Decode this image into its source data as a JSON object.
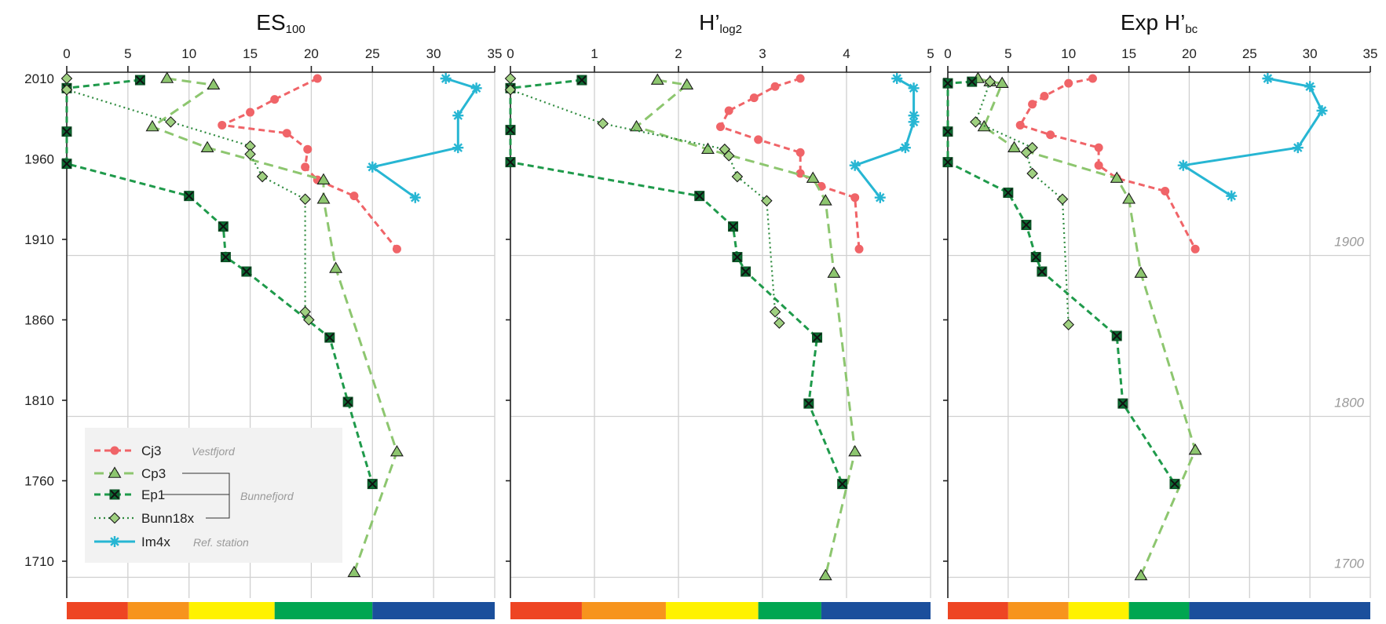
{
  "chart_data": {
    "type": "line",
    "y_axis": {
      "range": [
        1690,
        2010
      ],
      "inverted": true,
      "ticks": [
        2010,
        1960,
        1910,
        1860,
        1810,
        1760,
        1710
      ],
      "reference_lines": [
        {
          "year": 1900,
          "label": "1900"
        },
        {
          "year": 1800,
          "label": "1800"
        },
        {
          "year": 1700,
          "label": "1700"
        }
      ]
    },
    "series_styles": {
      "Cj3": {
        "color": "#f06468",
        "dash": "8,5",
        "marker": "circle"
      },
      "Cp3": {
        "color": "#8dc66f",
        "dash": "12,7",
        "marker": "triangle"
      },
      "Ep1": {
        "color": "#1f9a4b",
        "dash": "8,5",
        "marker": "xbox"
      },
      "Bunn18x": {
        "color": "#2e8b3e",
        "dash": "2,4",
        "marker": "diamond"
      },
      "Im4x": {
        "color": "#27b6d3",
        "dash": "",
        "marker": "star"
      }
    },
    "panels": [
      {
        "title_main": "ES",
        "title_sub": "100",
        "xlim": [
          0,
          35
        ],
        "xticks": [
          0,
          5,
          10,
          15,
          20,
          25,
          30,
          35
        ],
        "color_scale": [
          {
            "from": 0,
            "to": 5,
            "color": "#ee4523"
          },
          {
            "from": 5,
            "to": 10,
            "color": "#f7941d"
          },
          {
            "from": 10,
            "to": 17,
            "color": "#fff200"
          },
          {
            "from": 17,
            "to": 25,
            "color": "#00a651"
          },
          {
            "from": 25,
            "to": 35,
            "color": "#1b4f9c"
          }
        ],
        "series": [
          {
            "name": "Cj3",
            "points": [
              [
                20.5,
                2010
              ],
              [
                17,
                1997
              ],
              [
                15,
                1989
              ],
              [
                12.7,
                1981
              ],
              [
                18,
                1976
              ],
              [
                19.7,
                1966
              ],
              [
                19.5,
                1955
              ],
              [
                20.5,
                1947
              ],
              [
                23.5,
                1937
              ],
              [
                27,
                1904
              ]
            ]
          },
          {
            "name": "Cp3",
            "points": [
              [
                8.2,
                2010
              ],
              [
                12,
                2006
              ],
              [
                7,
                1980
              ],
              [
                11.5,
                1967
              ],
              [
                21,
                1947
              ],
              [
                21,
                1935
              ],
              [
                22,
                1892
              ],
              [
                27,
                1778
              ],
              [
                23.5,
                1703
              ]
            ]
          },
          {
            "name": "Ep1",
            "points": [
              [
                6,
                2009
              ],
              [
                0,
                2004
              ],
              [
                0,
                1977
              ],
              [
                0,
                1957
              ],
              [
                10,
                1937
              ],
              [
                12.8,
                1918
              ],
              [
                13,
                1899
              ],
              [
                14.7,
                1890
              ],
              [
                21.5,
                1849
              ],
              [
                23,
                1809
              ],
              [
                25,
                1758
              ]
            ]
          },
          {
            "name": "Bunn18x",
            "points": [
              [
                0,
                2010
              ],
              [
                0,
                2003
              ],
              [
                8.5,
                1983
              ],
              [
                15,
                1968
              ],
              [
                15,
                1963
              ],
              [
                16,
                1949
              ],
              [
                19.5,
                1935
              ],
              [
                19.5,
                1865
              ],
              [
                19.8,
                1860
              ]
            ]
          },
          {
            "name": "Im4x",
            "points": [
              [
                31,
                2010
              ],
              [
                33.5,
                2004
              ],
              [
                32,
                1987
              ],
              [
                32,
                1967
              ],
              [
                25,
                1955
              ],
              [
                28.5,
                1936
              ]
            ]
          }
        ]
      },
      {
        "title_main": "H’",
        "title_sub": "log2",
        "xlim": [
          0,
          5
        ],
        "xticks": [
          0,
          1,
          2,
          3,
          4,
          5
        ],
        "color_scale": [
          {
            "from": 0,
            "to": 0.85,
            "color": "#ee4523"
          },
          {
            "from": 0.85,
            "to": 1.85,
            "color": "#f7941d"
          },
          {
            "from": 1.85,
            "to": 2.95,
            "color": "#fff200"
          },
          {
            "from": 2.95,
            "to": 3.7,
            "color": "#00a651"
          },
          {
            "from": 3.7,
            "to": 5,
            "color": "#1b4f9c"
          }
        ],
        "series": [
          {
            "name": "Cj3",
            "points": [
              [
                3.45,
                2010
              ],
              [
                3.15,
                2005
              ],
              [
                2.9,
                1998
              ],
              [
                2.6,
                1990
              ],
              [
                2.5,
                1980
              ],
              [
                2.95,
                1972
              ],
              [
                3.45,
                1964
              ],
              [
                3.45,
                1951
              ],
              [
                3.7,
                1943
              ],
              [
                4.1,
                1936
              ],
              [
                4.15,
                1904
              ]
            ]
          },
          {
            "name": "Cp3",
            "points": [
              [
                1.75,
                2009
              ],
              [
                2.1,
                2006
              ],
              [
                1.5,
                1980
              ],
              [
                2.35,
                1966
              ],
              [
                3.6,
                1948
              ],
              [
                3.75,
                1934
              ],
              [
                3.85,
                1889
              ],
              [
                4.1,
                1778
              ],
              [
                3.75,
                1701
              ]
            ]
          },
          {
            "name": "Ep1",
            "points": [
              [
                0.85,
                2009
              ],
              [
                0,
                2004
              ],
              [
                0,
                1978
              ],
              [
                0,
                1958
              ],
              [
                2.25,
                1937
              ],
              [
                2.65,
                1918
              ],
              [
                2.7,
                1899
              ],
              [
                2.8,
                1890
              ],
              [
                3.65,
                1849
              ],
              [
                3.55,
                1808
              ],
              [
                3.95,
                1758
              ]
            ]
          },
          {
            "name": "Bunn18x",
            "points": [
              [
                0,
                2010
              ],
              [
                0,
                2003
              ],
              [
                1.1,
                1982
              ],
              [
                2.55,
                1966
              ],
              [
                2.6,
                1962
              ],
              [
                2.7,
                1949
              ],
              [
                3.05,
                1934
              ],
              [
                3.15,
                1865
              ],
              [
                3.2,
                1858
              ]
            ]
          },
          {
            "name": "Im4x",
            "points": [
              [
                4.6,
                2010
              ],
              [
                4.8,
                2004
              ],
              [
                4.8,
                1987
              ],
              [
                4.8,
                1983
              ],
              [
                4.7,
                1967
              ],
              [
                4.1,
                1956
              ],
              [
                4.4,
                1936
              ]
            ]
          }
        ]
      },
      {
        "title_main": "Exp H’",
        "title_sub": "bc",
        "xlim": [
          0,
          35
        ],
        "xticks": [
          0,
          5,
          10,
          15,
          20,
          25,
          30,
          35
        ],
        "color_scale": [
          {
            "from": 0,
            "to": 5,
            "color": "#ee4523"
          },
          {
            "from": 5,
            "to": 10,
            "color": "#f7941d"
          },
          {
            "from": 10,
            "to": 15,
            "color": "#fff200"
          },
          {
            "from": 15,
            "to": 20,
            "color": "#00a651"
          },
          {
            "from": 20,
            "to": 35,
            "color": "#1b4f9c"
          }
        ],
        "series": [
          {
            "name": "Cj3",
            "points": [
              [
                12,
                2010
              ],
              [
                10,
                2007
              ],
              [
                8,
                1999
              ],
              [
                7,
                1994
              ],
              [
                6,
                1981
              ],
              [
                8.5,
                1975
              ],
              [
                12.5,
                1967
              ],
              [
                12.5,
                1956
              ],
              [
                14,
                1948
              ],
              [
                18,
                1940
              ],
              [
                20.5,
                1904
              ]
            ]
          },
          {
            "name": "Cp3",
            "points": [
              [
                2.5,
                2010
              ],
              [
                3.5,
                2008
              ],
              [
                4.5,
                2007
              ],
              [
                3,
                1980
              ],
              [
                5.5,
                1967
              ],
              [
                14,
                1948
              ],
              [
                15,
                1935
              ],
              [
                16,
                1889
              ],
              [
                20.5,
                1779
              ],
              [
                16,
                1701
              ]
            ]
          },
          {
            "name": "Ep1",
            "points": [
              [
                2,
                2008
              ],
              [
                0,
                2007
              ],
              [
                0,
                1977
              ],
              [
                0,
                1958
              ],
              [
                5,
                1939
              ],
              [
                6.5,
                1919
              ],
              [
                7.3,
                1899
              ],
              [
                7.8,
                1890
              ],
              [
                14,
                1850
              ],
              [
                14.5,
                1808
              ],
              [
                18.8,
                1758
              ]
            ]
          },
          {
            "name": "Bunn18x",
            "points": [
              [
                3.5,
                2008
              ],
              [
                2.3,
                1983
              ],
              [
                7,
                1967
              ],
              [
                6.5,
                1964
              ],
              [
                7,
                1951
              ],
              [
                9.5,
                1935
              ],
              [
                10,
                1857
              ]
            ]
          },
          {
            "name": "Im4x",
            "points": [
              [
                26.5,
                2010
              ],
              [
                30,
                2005
              ],
              [
                31,
                1990
              ],
              [
                29,
                1967
              ],
              [
                19.5,
                1956
              ],
              [
                23.5,
                1937
              ]
            ]
          }
        ]
      }
    ],
    "legend": {
      "items": [
        {
          "name": "Cj3",
          "note": "Vestfjord"
        },
        {
          "name": "Cp3",
          "note": ""
        },
        {
          "name": "Ep1",
          "note": ""
        },
        {
          "name": "Bunn18x",
          "note": ""
        },
        {
          "name": "Im4x",
          "note": "Ref. station"
        }
      ],
      "group_note": "Bunnefjord"
    }
  }
}
